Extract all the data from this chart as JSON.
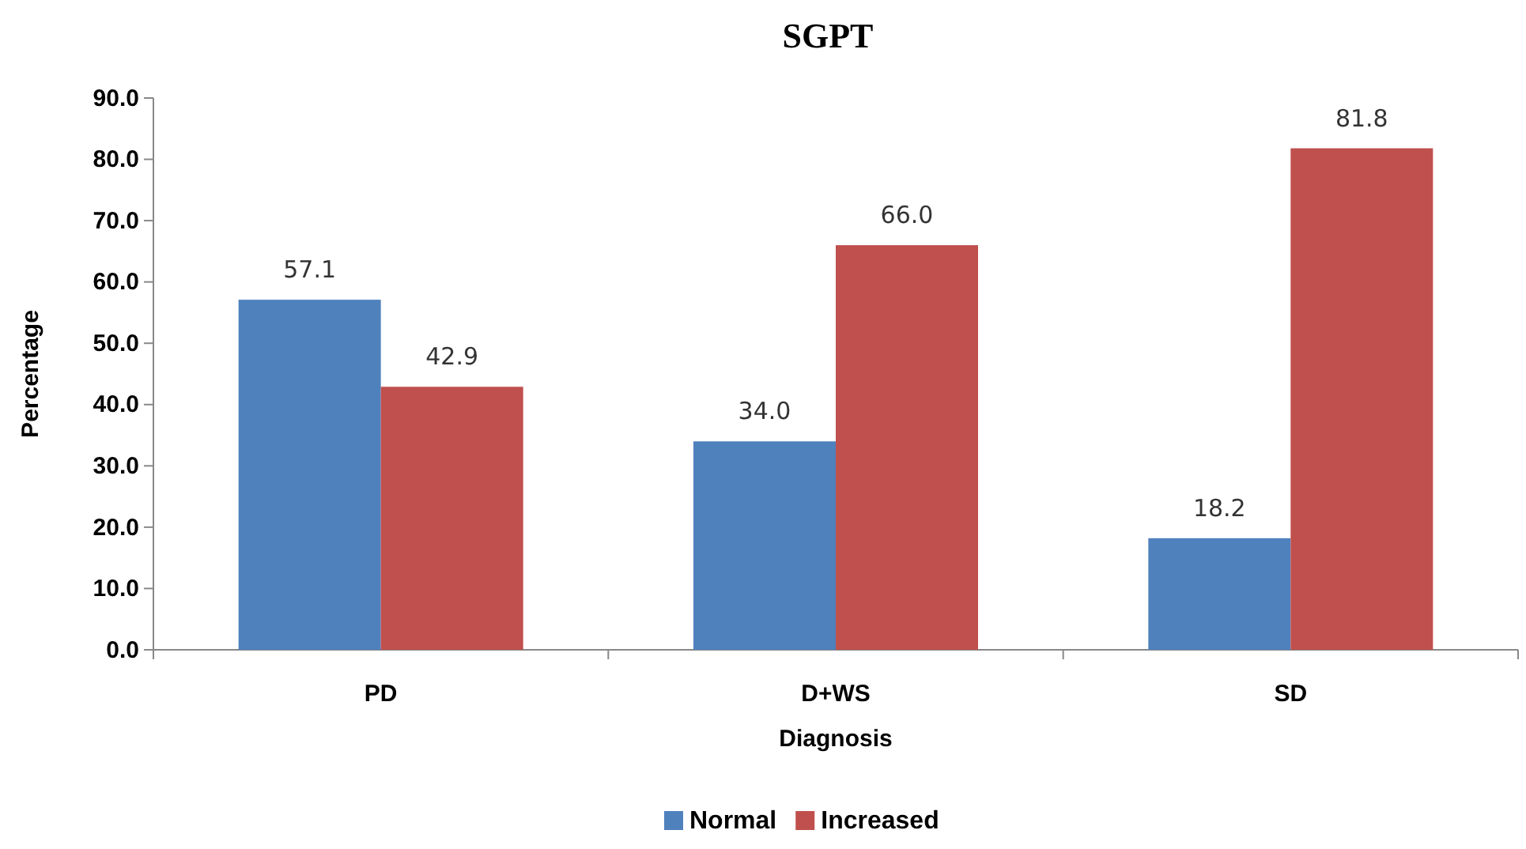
{
  "chart_data": {
    "type": "bar",
    "title": "SGPT",
    "xlabel": "Diagnosis",
    "ylabel": "Percentage",
    "categories": [
      "PD",
      "D+WS",
      "SD"
    ],
    "series": [
      {
        "name": "Normal",
        "color": "#4f81bd",
        "values": [
          57.1,
          34.0,
          18.2
        ]
      },
      {
        "name": "Increased",
        "color": "#c0504d",
        "values": [
          42.9,
          66.0,
          81.8
        ]
      }
    ],
    "ylim": [
      0,
      90
    ],
    "yticks": [
      {
        "value": 0,
        "label": "0.0"
      },
      {
        "value": 10,
        "label": "10.0"
      },
      {
        "value": 20,
        "label": "20.0"
      },
      {
        "value": 30,
        "label": "30.0"
      },
      {
        "value": 40,
        "label": "40.0"
      },
      {
        "value": 50,
        "label": "50.0"
      },
      {
        "value": 60,
        "label": "60.0"
      },
      {
        "value": 70,
        "label": "70.0"
      },
      {
        "value": 80,
        "label": "80.0"
      },
      {
        "value": 90,
        "label": "90.0"
      }
    ],
    "value_labels": [
      [
        "57.1",
        "34.0",
        "18.2"
      ],
      [
        "42.9",
        "66.0",
        "81.8"
      ]
    ],
    "grid": false,
    "legend": "bottom"
  }
}
